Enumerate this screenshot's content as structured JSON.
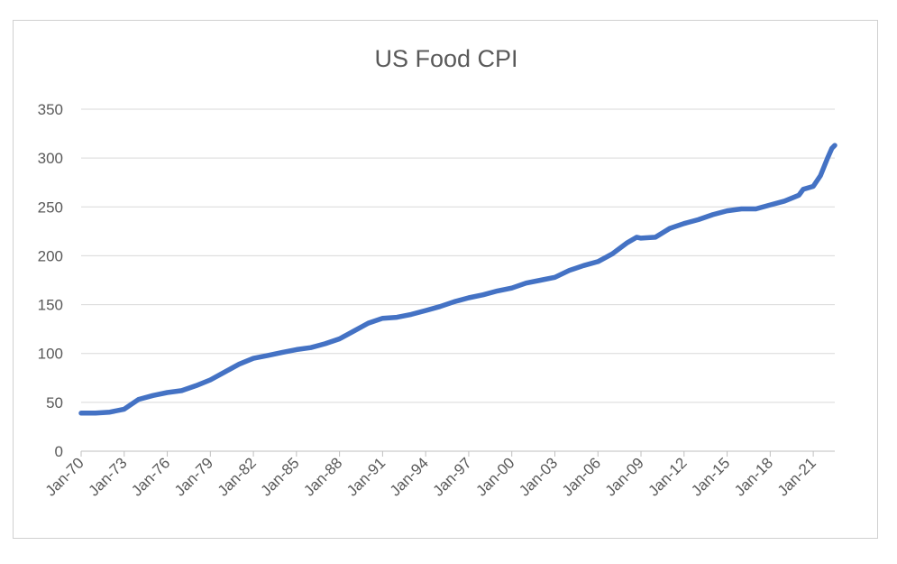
{
  "chart_data": {
    "type": "line",
    "title": "US Food CPI",
    "xlabel": "",
    "ylabel": "",
    "ylim": [
      0,
      350
    ],
    "yticks": [
      0,
      50,
      100,
      150,
      200,
      250,
      300,
      350
    ],
    "xlim": [
      1970.0,
      2022.5
    ],
    "xticks": [
      {
        "x": 1970,
        "label": "Jan-70"
      },
      {
        "x": 1973,
        "label": "Jan-73"
      },
      {
        "x": 1976,
        "label": "Jan-76"
      },
      {
        "x": 1979,
        "label": "Jan-79"
      },
      {
        "x": 1982,
        "label": "Jan-82"
      },
      {
        "x": 1985,
        "label": "Jan-85"
      },
      {
        "x": 1988,
        "label": "Jan-88"
      },
      {
        "x": 1991,
        "label": "Jan-91"
      },
      {
        "x": 1994,
        "label": "Jan-94"
      },
      {
        "x": 1997,
        "label": "Jan-97"
      },
      {
        "x": 2000,
        "label": "Jan-00"
      },
      {
        "x": 2003,
        "label": "Jan-03"
      },
      {
        "x": 2006,
        "label": "Jan-06"
      },
      {
        "x": 2009,
        "label": "Jan-09"
      },
      {
        "x": 2012,
        "label": "Jan-12"
      },
      {
        "x": 2015,
        "label": "Jan-15"
      },
      {
        "x": 2018,
        "label": "Jan-18"
      },
      {
        "x": 2021,
        "label": "Jan-21"
      }
    ],
    "grid": true,
    "legend": "none",
    "series_color": "#4472C4",
    "series": [
      {
        "x": [
          1970.0,
          1971.0,
          1972.0,
          1973.0,
          1973.5,
          1974.0,
          1975.0,
          1976.0,
          1977.0,
          1978.0,
          1979.0,
          1980.0,
          1981.0,
          1982.0,
          1983.0,
          1984.0,
          1985.0,
          1986.0,
          1987.0,
          1988.0,
          1989.0,
          1990.0,
          1991.0,
          1992.0,
          1993.0,
          1994.0,
          1995.0,
          1996.0,
          1997.0,
          1998.0,
          1999.0,
          2000.0,
          2001.0,
          2002.0,
          2003.0,
          2004.0,
          2005.0,
          2006.0,
          2007.0,
          2008.0,
          2008.7,
          2009.0,
          2010.0,
          2011.0,
          2012.0,
          2013.0,
          2014.0,
          2015.0,
          2016.0,
          2017.0,
          2018.0,
          2019.0,
          2020.0,
          2020.3,
          2021.0,
          2021.5,
          2022.0,
          2022.3,
          2022.5
        ],
        "y": [
          39,
          39,
          40,
          43,
          48,
          53,
          57,
          60,
          62,
          67,
          73,
          81,
          89,
          95,
          98,
          101,
          104,
          106,
          110,
          115,
          123,
          131,
          136,
          137,
          140,
          144,
          148,
          153,
          157,
          160,
          164,
          167,
          172,
          175,
          178,
          185,
          190,
          194,
          202,
          213,
          219,
          218,
          219,
          228,
          233,
          237,
          242,
          246,
          248,
          248,
          252,
          256,
          262,
          268,
          271,
          282,
          300,
          310,
          313
        ]
      }
    ]
  }
}
